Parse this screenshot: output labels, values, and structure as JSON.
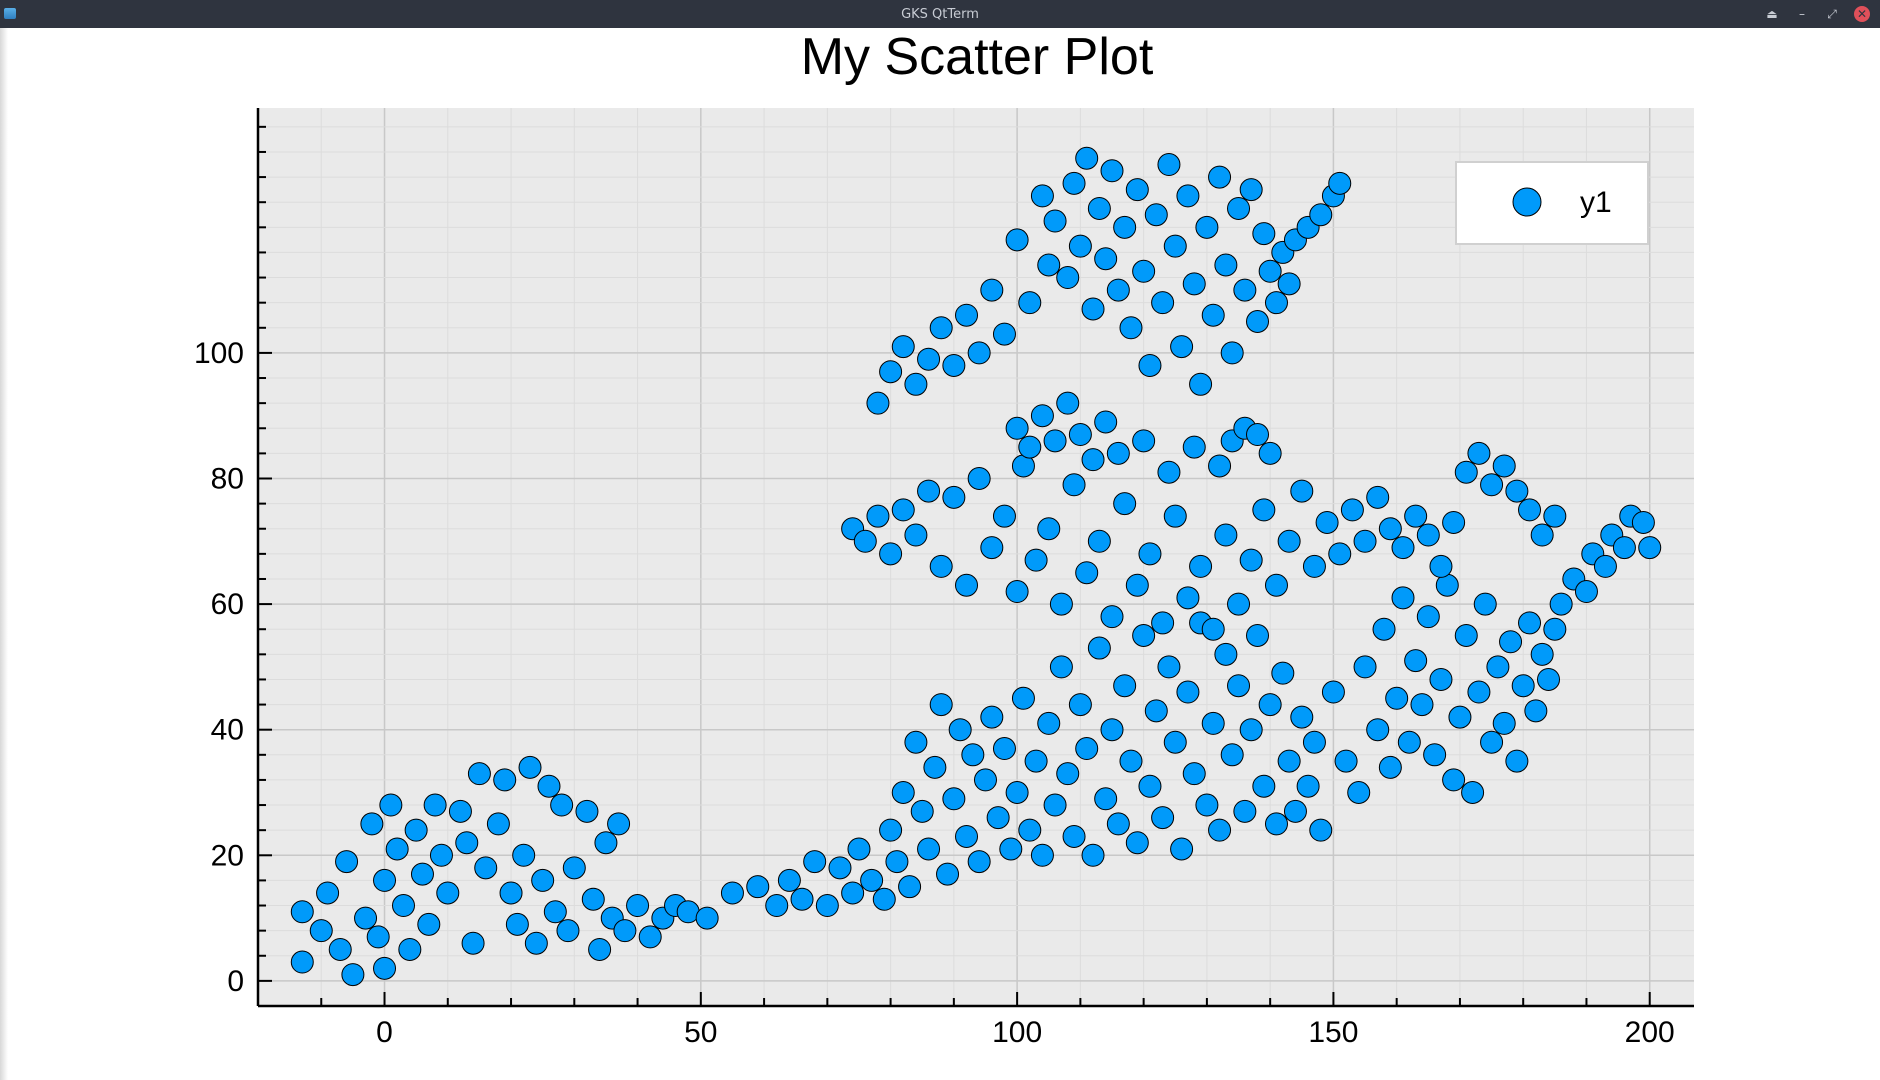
{
  "window": {
    "title": "GKS QtTerm",
    "controls": {
      "keep_above": "⏏",
      "minimize": "–",
      "restore": "⤢",
      "close": "✕"
    }
  },
  "colors": {
    "marker_fill": "#009AFA",
    "marker_stroke": "#000000",
    "plot_bg": "#EAEAEA",
    "grid": "#C8C8C8",
    "titlebar": "#2F343F"
  },
  "chart_data": {
    "type": "scatter",
    "title": "My Scatter Plot",
    "xlabel": "",
    "ylabel": "",
    "xlim": [
      -20,
      207
    ],
    "ylim": [
      -4,
      139
    ],
    "xticks": [
      0,
      50,
      100,
      150,
      200
    ],
    "yticks": [
      0,
      20,
      40,
      60,
      80,
      100
    ],
    "x_tick_labels": [
      "0",
      "50",
      "100",
      "150",
      "200"
    ],
    "y_tick_labels": [
      "0",
      "20",
      "40",
      "60",
      "80",
      "100"
    ],
    "grid": true,
    "legend": {
      "position": "top-right",
      "entries": [
        "y1"
      ]
    },
    "series": [
      {
        "name": "y1",
        "points": [
          [
            -13,
            11
          ],
          [
            -13,
            3
          ],
          [
            -10,
            8
          ],
          [
            -9,
            14
          ],
          [
            -7,
            5
          ],
          [
            -6,
            19
          ],
          [
            -5,
            1
          ],
          [
            -3,
            10
          ],
          [
            -2,
            25
          ],
          [
            -1,
            7
          ],
          [
            0,
            16
          ],
          [
            0,
            2
          ],
          [
            1,
            28
          ],
          [
            2,
            21
          ],
          [
            3,
            12
          ],
          [
            4,
            5
          ],
          [
            5,
            24
          ],
          [
            6,
            17
          ],
          [
            7,
            9
          ],
          [
            8,
            28
          ],
          [
            9,
            20
          ],
          [
            10,
            14
          ],
          [
            12,
            27
          ],
          [
            13,
            22
          ],
          [
            14,
            6
          ],
          [
            15,
            33
          ],
          [
            16,
            18
          ],
          [
            18,
            25
          ],
          [
            19,
            32
          ],
          [
            20,
            14
          ],
          [
            21,
            9
          ],
          [
            22,
            20
          ],
          [
            23,
            34
          ],
          [
            24,
            6
          ],
          [
            25,
            16
          ],
          [
            26,
            31
          ],
          [
            27,
            11
          ],
          [
            28,
            28
          ],
          [
            29,
            8
          ],
          [
            30,
            18
          ],
          [
            32,
            27
          ],
          [
            33,
            13
          ],
          [
            34,
            5
          ],
          [
            35,
            22
          ],
          [
            36,
            10
          ],
          [
            37,
            25
          ],
          [
            38,
            8
          ],
          [
            40,
            12
          ],
          [
            42,
            7
          ],
          [
            44,
            10
          ],
          [
            46,
            12
          ],
          [
            48,
            11
          ],
          [
            51,
            10
          ],
          [
            55,
            14
          ],
          [
            59,
            15
          ],
          [
            62,
            12
          ],
          [
            64,
            16
          ],
          [
            66,
            13
          ],
          [
            68,
            19
          ],
          [
            70,
            12
          ],
          [
            72,
            18
          ],
          [
            74,
            14
          ],
          [
            75,
            21
          ],
          [
            77,
            16
          ],
          [
            79,
            13
          ],
          [
            80,
            24
          ],
          [
            81,
            19
          ],
          [
            82,
            30
          ],
          [
            83,
            15
          ],
          [
            84,
            38
          ],
          [
            85,
            27
          ],
          [
            86,
            21
          ],
          [
            87,
            34
          ],
          [
            88,
            44
          ],
          [
            89,
            17
          ],
          [
            90,
            29
          ],
          [
            91,
            40
          ],
          [
            92,
            23
          ],
          [
            93,
            36
          ],
          [
            94,
            19
          ],
          [
            95,
            32
          ],
          [
            96,
            42
          ],
          [
            97,
            26
          ],
          [
            98,
            37
          ],
          [
            99,
            21
          ],
          [
            100,
            30
          ],
          [
            101,
            45
          ],
          [
            102,
            24
          ],
          [
            103,
            35
          ],
          [
            104,
            20
          ],
          [
            105,
            41
          ],
          [
            106,
            28
          ],
          [
            107,
            50
          ],
          [
            108,
            33
          ],
          [
            109,
            23
          ],
          [
            110,
            44
          ],
          [
            111,
            37
          ],
          [
            112,
            20
          ],
          [
            113,
            53
          ],
          [
            114,
            29
          ],
          [
            115,
            40
          ],
          [
            116,
            25
          ],
          [
            117,
            47
          ],
          [
            118,
            35
          ],
          [
            119,
            22
          ],
          [
            120,
            55
          ],
          [
            121,
            31
          ],
          [
            122,
            43
          ],
          [
            123,
            26
          ],
          [
            124,
            50
          ],
          [
            125,
            38
          ],
          [
            126,
            21
          ],
          [
            127,
            46
          ],
          [
            128,
            33
          ],
          [
            129,
            57
          ],
          [
            130,
            28
          ],
          [
            131,
            41
          ],
          [
            132,
            24
          ],
          [
            133,
            52
          ],
          [
            134,
            36
          ],
          [
            135,
            47
          ],
          [
            136,
            27
          ],
          [
            137,
            40
          ],
          [
            138,
            55
          ],
          [
            139,
            31
          ],
          [
            140,
            44
          ],
          [
            141,
            25
          ],
          [
            142,
            49
          ],
          [
            143,
            35
          ],
          [
            144,
            27
          ],
          [
            145,
            42
          ],
          [
            146,
            31
          ],
          [
            147,
            38
          ],
          [
            148,
            24
          ],
          [
            150,
            46
          ],
          [
            152,
            35
          ],
          [
            154,
            30
          ],
          [
            155,
            50
          ],
          [
            157,
            40
          ],
          [
            158,
            56
          ],
          [
            159,
            34
          ],
          [
            160,
            45
          ],
          [
            161,
            61
          ],
          [
            162,
            38
          ],
          [
            163,
            51
          ],
          [
            164,
            44
          ],
          [
            165,
            58
          ],
          [
            166,
            36
          ],
          [
            167,
            48
          ],
          [
            168,
            63
          ],
          [
            169,
            32
          ],
          [
            170,
            42
          ],
          [
            171,
            55
          ],
          [
            172,
            30
          ],
          [
            173,
            46
          ],
          [
            174,
            60
          ],
          [
            175,
            38
          ],
          [
            176,
            50
          ],
          [
            177,
            41
          ],
          [
            178,
            54
          ],
          [
            179,
            35
          ],
          [
            180,
            47
          ],
          [
            181,
            57
          ],
          [
            182,
            43
          ],
          [
            183,
            52
          ],
          [
            184,
            48
          ],
          [
            185,
            56
          ],
          [
            186,
            60
          ],
          [
            188,
            64
          ],
          [
            190,
            62
          ],
          [
            191,
            68
          ],
          [
            193,
            66
          ],
          [
            194,
            71
          ],
          [
            196,
            69
          ],
          [
            197,
            74
          ],
          [
            199,
            73
          ],
          [
            200,
            69
          ],
          [
            74,
            72
          ],
          [
            76,
            70
          ],
          [
            78,
            74
          ],
          [
            80,
            68
          ],
          [
            82,
            75
          ],
          [
            84,
            71
          ],
          [
            86,
            78
          ],
          [
            88,
            66
          ],
          [
            90,
            77
          ],
          [
            92,
            63
          ],
          [
            94,
            80
          ],
          [
            96,
            69
          ],
          [
            98,
            74
          ],
          [
            100,
            62
          ],
          [
            101,
            82
          ],
          [
            103,
            67
          ],
          [
            105,
            72
          ],
          [
            107,
            60
          ],
          [
            109,
            79
          ],
          [
            111,
            65
          ],
          [
            113,
            70
          ],
          [
            115,
            58
          ],
          [
            117,
            76
          ],
          [
            119,
            63
          ],
          [
            121,
            68
          ],
          [
            123,
            57
          ],
          [
            125,
            74
          ],
          [
            127,
            61
          ],
          [
            129,
            66
          ],
          [
            131,
            56
          ],
          [
            133,
            71
          ],
          [
            135,
            60
          ],
          [
            137,
            67
          ],
          [
            139,
            75
          ],
          [
            141,
            63
          ],
          [
            143,
            70
          ],
          [
            145,
            78
          ],
          [
            147,
            66
          ],
          [
            149,
            73
          ],
          [
            151,
            68
          ],
          [
            153,
            75
          ],
          [
            155,
            70
          ],
          [
            157,
            77
          ],
          [
            159,
            72
          ],
          [
            161,
            69
          ],
          [
            163,
            74
          ],
          [
            165,
            71
          ],
          [
            167,
            66
          ],
          [
            169,
            73
          ],
          [
            171,
            81
          ],
          [
            173,
            84
          ],
          [
            175,
            79
          ],
          [
            177,
            82
          ],
          [
            179,
            78
          ],
          [
            181,
            75
          ],
          [
            183,
            71
          ],
          [
            185,
            74
          ],
          [
            78,
            92
          ],
          [
            80,
            97
          ],
          [
            82,
            101
          ],
          [
            84,
            95
          ],
          [
            86,
            99
          ],
          [
            88,
            104
          ],
          [
            90,
            98
          ],
          [
            92,
            106
          ],
          [
            94,
            100
          ],
          [
            96,
            110
          ],
          [
            98,
            103
          ],
          [
            100,
            118
          ],
          [
            102,
            108
          ],
          [
            104,
            125
          ],
          [
            105,
            114
          ],
          [
            106,
            121
          ],
          [
            108,
            112
          ],
          [
            109,
            127
          ],
          [
            110,
            117
          ],
          [
            111,
            131
          ],
          [
            112,
            107
          ],
          [
            113,
            123
          ],
          [
            114,
            115
          ],
          [
            115,
            129
          ],
          [
            116,
            110
          ],
          [
            117,
            120
          ],
          [
            118,
            104
          ],
          [
            119,
            126
          ],
          [
            120,
            113
          ],
          [
            121,
            98
          ],
          [
            122,
            122
          ],
          [
            123,
            108
          ],
          [
            124,
            130
          ],
          [
            125,
            117
          ],
          [
            126,
            101
          ],
          [
            127,
            125
          ],
          [
            128,
            111
          ],
          [
            129,
            95
          ],
          [
            130,
            120
          ],
          [
            131,
            106
          ],
          [
            132,
            128
          ],
          [
            133,
            114
          ],
          [
            134,
            100
          ],
          [
            135,
            123
          ],
          [
            136,
            110
          ],
          [
            137,
            126
          ],
          [
            138,
            105
          ],
          [
            139,
            119
          ],
          [
            140,
            113
          ],
          [
            141,
            108
          ],
          [
            142,
            116
          ],
          [
            143,
            111
          ],
          [
            144,
            118
          ],
          [
            146,
            120
          ],
          [
            148,
            122
          ],
          [
            150,
            125
          ],
          [
            151,
            127
          ],
          [
            100,
            88
          ],
          [
            102,
            85
          ],
          [
            104,
            90
          ],
          [
            106,
            86
          ],
          [
            108,
            92
          ],
          [
            110,
            87
          ],
          [
            112,
            83
          ],
          [
            114,
            89
          ],
          [
            116,
            84
          ],
          [
            120,
            86
          ],
          [
            124,
            81
          ],
          [
            128,
            85
          ],
          [
            132,
            82
          ],
          [
            134,
            86
          ],
          [
            136,
            88
          ],
          [
            138,
            87
          ],
          [
            140,
            84
          ]
        ]
      }
    ]
  }
}
